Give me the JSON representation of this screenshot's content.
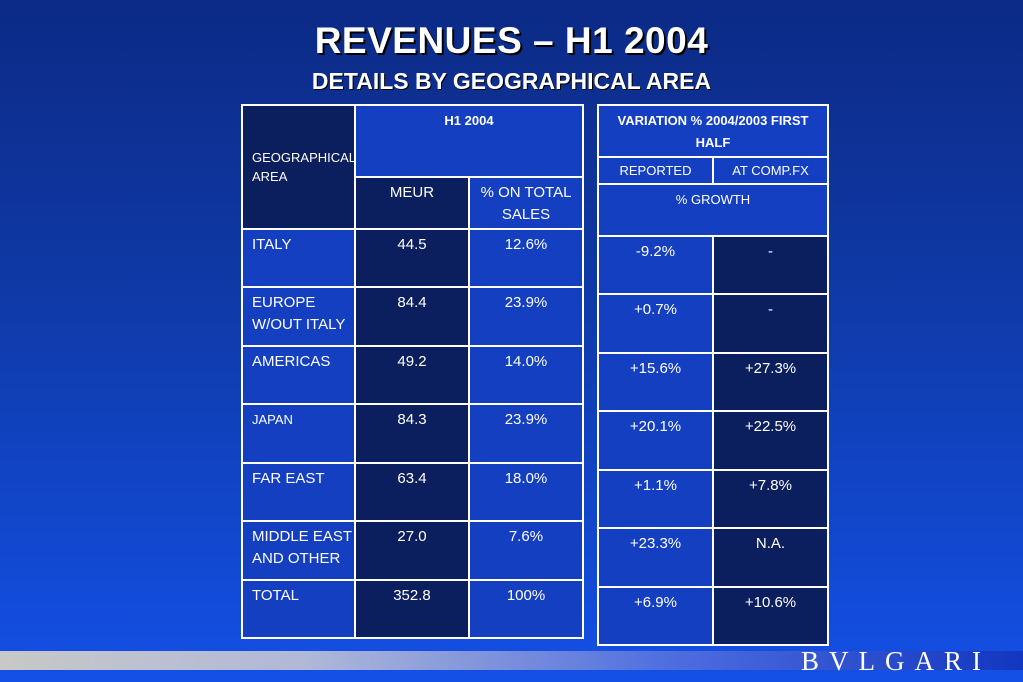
{
  "title": "REVENUES – H1 2004",
  "subtitle": "DETAILS BY GEOGRAPHICAL AREA",
  "table1": {
    "geo_header": "GEOGRAPHICAL AREA",
    "h1_header": "H1 2004",
    "col_meur": "MEUR",
    "col_pct": "% ON TOTAL SALES",
    "rows": [
      {
        "area": "ITALY",
        "meur": "44.5",
        "pct": "12.6%"
      },
      {
        "area": "EUROPE W/OUT ITALY",
        "meur": "84.4",
        "pct": "23.9%"
      },
      {
        "area": "AMERICAS",
        "meur": "49.2",
        "pct": "14.0%"
      },
      {
        "area": "JAPAN",
        "meur": "84.3",
        "pct": "23.9%"
      },
      {
        "area": "FAR EAST",
        "meur": "63.4",
        "pct": "18.0%"
      },
      {
        "area": "MIDDLE EAST AND OTHER",
        "meur": "27.0",
        "pct": "7.6%"
      },
      {
        "area": "TOTAL",
        "meur": "352.8",
        "pct": "100%"
      }
    ]
  },
  "table2": {
    "header": "VARIATION % 2004/2003 FIRST HALF",
    "col_reported": "REPORTED",
    "col_compfx": "AT COMP.FX",
    "growth_label": "% GROWTH",
    "rows": [
      {
        "reported": "-9.2%",
        "compfx": "-"
      },
      {
        "reported": "+0.7%",
        "compfx": "-"
      },
      {
        "reported": "+15.6%",
        "compfx": "+27.3%"
      },
      {
        "reported": "+20.1%",
        "compfx": "+22.5%"
      },
      {
        "reported": "+1.1%",
        "compfx": "+7.8%"
      },
      {
        "reported": "+23.3%",
        "compfx": "N.A."
      },
      {
        "reported": "+6.9%",
        "compfx": "+10.6%"
      }
    ]
  },
  "brand": "BVLGARI"
}
